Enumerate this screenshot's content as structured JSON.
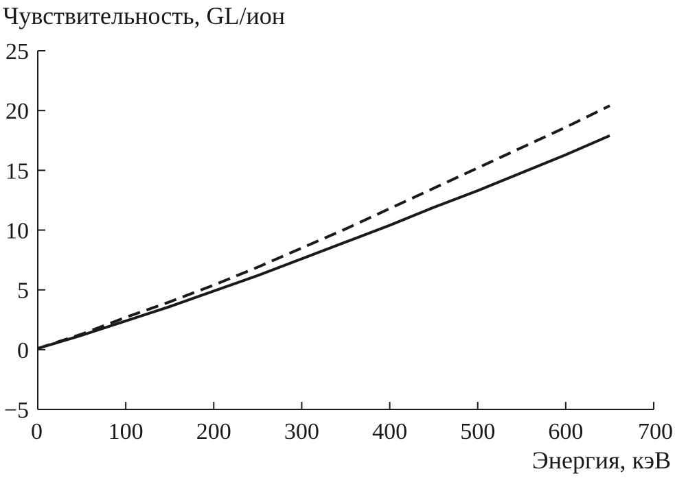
{
  "chart_data": {
    "type": "line",
    "title": "",
    "ylabel": "Чувствительность, GL/ион",
    "xlabel": "Энергия, кэВ",
    "xlim": [
      0,
      700
    ],
    "ylim": [
      -5,
      25
    ],
    "xticks": [
      "0",
      "100",
      "200",
      "300",
      "400",
      "500",
      "600",
      "700"
    ],
    "yticks": [
      "−5",
      "0",
      "5",
      "10",
      "15",
      "20",
      "25"
    ],
    "xtick_values": [
      0,
      100,
      200,
      300,
      400,
      500,
      600,
      700
    ],
    "ytick_values": [
      -5,
      0,
      5,
      10,
      15,
      20,
      25
    ],
    "grid": false,
    "legend": "none",
    "series": [
      {
        "style": "solid",
        "color": "#1a1a1a",
        "x": [
          0,
          50,
          100,
          150,
          200,
          250,
          300,
          350,
          400,
          450,
          500,
          550,
          600,
          650
        ],
        "y": [
          0.1,
          1.2,
          2.4,
          3.6,
          4.9,
          6.2,
          7.6,
          9.0,
          10.4,
          11.9,
          13.3,
          14.8,
          16.3,
          17.9
        ]
      },
      {
        "style": "dashed",
        "color": "#1a1a1a",
        "x": [
          0,
          50,
          100,
          150,
          200,
          250,
          300,
          350,
          400,
          450,
          500,
          550,
          600,
          650
        ],
        "y": [
          0.1,
          1.3,
          2.7,
          4.0,
          5.4,
          6.9,
          8.5,
          10.1,
          11.8,
          13.5,
          15.2,
          16.9,
          18.6,
          20.4
        ]
      }
    ]
  }
}
